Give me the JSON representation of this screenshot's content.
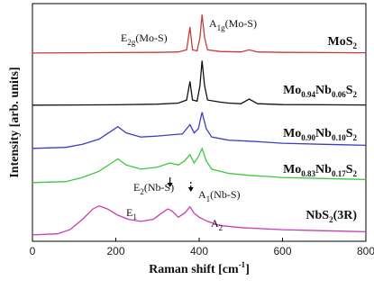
{
  "chart_data": {
    "type": "line",
    "xlabel": "Raman shift [cm",
    "xlabel_sup": "-1",
    "xlabel_close": "]",
    "ylabel": "Intensity [arb. units]",
    "xlim": [
      0,
      800
    ],
    "xticks": [
      0,
      200,
      400,
      600,
      800
    ],
    "grid": false,
    "series": [
      {
        "name": "MoS2",
        "label_main": "MoS",
        "label_sub": "2",
        "color": "#c83a3a",
        "points": [
          [
            0,
            0.5
          ],
          [
            100,
            0.6
          ],
          [
            200,
            0.7
          ],
          [
            300,
            0.8
          ],
          [
            350,
            1.0
          ],
          [
            370,
            2.0
          ],
          [
            378,
            13.0
          ],
          [
            384,
            2.0
          ],
          [
            395,
            1.5
          ],
          [
            402,
            8.0
          ],
          [
            407,
            19.0
          ],
          [
            413,
            8.0
          ],
          [
            420,
            2.0
          ],
          [
            450,
            1.2
          ],
          [
            500,
            1.0
          ],
          [
            520,
            2.0
          ],
          [
            540,
            1.0
          ],
          [
            600,
            0.8
          ],
          [
            700,
            0.7
          ],
          [
            800,
            0.6
          ]
        ]
      },
      {
        "name": "Mo0.94Nb0.06S2",
        "label_parts": [
          [
            "Mo",
            ""
          ],
          [
            "0.94",
            "sub"
          ],
          [
            "Nb",
            ""
          ],
          [
            "0.06",
            "sub"
          ],
          [
            "S",
            ""
          ],
          [
            "2",
            "sub"
          ]
        ],
        "color": "#111111",
        "points": [
          [
            0,
            0.5
          ],
          [
            100,
            0.6
          ],
          [
            200,
            0.7
          ],
          [
            300,
            1.0
          ],
          [
            350,
            1.5
          ],
          [
            370,
            3.0
          ],
          [
            378,
            12.0
          ],
          [
            384,
            3.0
          ],
          [
            395,
            2.5
          ],
          [
            402,
            10.0
          ],
          [
            407,
            22.0
          ],
          [
            413,
            10.0
          ],
          [
            420,
            3.0
          ],
          [
            450,
            2.0
          ],
          [
            470,
            1.5
          ],
          [
            500,
            1.2
          ],
          [
            520,
            3.5
          ],
          [
            540,
            1.2
          ],
          [
            600,
            0.8
          ],
          [
            700,
            0.7
          ],
          [
            800,
            0.6
          ]
        ]
      },
      {
        "name": "Mo0.90Nb0.10S2",
        "label_parts": [
          [
            "Mo",
            ""
          ],
          [
            "0.90",
            "sub"
          ],
          [
            "Nb",
            ""
          ],
          [
            "0.10",
            "sub"
          ],
          [
            "S",
            ""
          ],
          [
            "2",
            "sub"
          ]
        ],
        "color": "#3c3cc8",
        "points": [
          [
            0,
            0.5
          ],
          [
            80,
            1.0
          ],
          [
            120,
            2.5
          ],
          [
            160,
            5.0
          ],
          [
            190,
            9.0
          ],
          [
            205,
            11.0
          ],
          [
            225,
            8.0
          ],
          [
            260,
            6.0
          ],
          [
            300,
            6.5
          ],
          [
            330,
            7.0
          ],
          [
            360,
            7.5
          ],
          [
            378,
            12.0
          ],
          [
            388,
            8.0
          ],
          [
            398,
            10.0
          ],
          [
            407,
            18.0
          ],
          [
            417,
            10.0
          ],
          [
            430,
            6.0
          ],
          [
            470,
            4.5
          ],
          [
            520,
            4.0
          ],
          [
            560,
            3.5
          ],
          [
            600,
            3.0
          ],
          [
            700,
            2.5
          ],
          [
            800,
            2.0
          ]
        ]
      },
      {
        "name": "Mo0.83Nb0.17S2",
        "label_parts": [
          [
            "Mo",
            ""
          ],
          [
            "0.83",
            "sub"
          ],
          [
            "Nb",
            ""
          ],
          [
            "0.17",
            "sub"
          ],
          [
            "S",
            ""
          ],
          [
            "2",
            "sub"
          ]
        ],
        "color": "#3cc83c",
        "points": [
          [
            0,
            0.5
          ],
          [
            80,
            1.0
          ],
          [
            120,
            3.0
          ],
          [
            160,
            6.0
          ],
          [
            190,
            10.0
          ],
          [
            205,
            12.0
          ],
          [
            225,
            9.0
          ],
          [
            260,
            7.0
          ],
          [
            300,
            8.0
          ],
          [
            330,
            10.0
          ],
          [
            350,
            9.0
          ],
          [
            365,
            11.0
          ],
          [
            378,
            14.0
          ],
          [
            388,
            10.0
          ],
          [
            398,
            13.0
          ],
          [
            407,
            17.0
          ],
          [
            417,
            11.0
          ],
          [
            430,
            7.0
          ],
          [
            470,
            5.0
          ],
          [
            520,
            4.0
          ],
          [
            560,
            3.5
          ],
          [
            600,
            3.0
          ],
          [
            700,
            2.5
          ],
          [
            800,
            2.0
          ]
        ]
      },
      {
        "name": "NbS2(3R)",
        "label_parts": [
          [
            "NbS",
            ""
          ],
          [
            "2",
            "sub"
          ],
          [
            "(3R)",
            ""
          ]
        ],
        "color": "#c83cb4",
        "points": [
          [
            0,
            0.5
          ],
          [
            60,
            1.0
          ],
          [
            90,
            3.0
          ],
          [
            120,
            8.0
          ],
          [
            145,
            13.0
          ],
          [
            160,
            14.5
          ],
          [
            180,
            13.0
          ],
          [
            205,
            10.0
          ],
          [
            230,
            8.0
          ],
          [
            260,
            7.0
          ],
          [
            290,
            8.0
          ],
          [
            310,
            11.0
          ],
          [
            325,
            13.0
          ],
          [
            335,
            12.0
          ],
          [
            350,
            9.0
          ],
          [
            365,
            11.0
          ],
          [
            378,
            14.0
          ],
          [
            388,
            11.0
          ],
          [
            400,
            9.0
          ],
          [
            420,
            7.0
          ],
          [
            450,
            5.0
          ],
          [
            500,
            4.0
          ],
          [
            600,
            3.0
          ],
          [
            700,
            2.5
          ],
          [
            800,
            2.0
          ]
        ]
      }
    ],
    "annotations": [
      {
        "parts": [
          [
            "E",
            ""
          ],
          [
            "2g",
            "sub"
          ],
          [
            "(Mo-S)",
            ""
          ]
        ]
      },
      {
        "parts": [
          [
            "A",
            ""
          ],
          [
            "1g",
            "sub"
          ],
          [
            "(Mo-S)",
            ""
          ]
        ]
      },
      {
        "parts": [
          [
            "E",
            ""
          ],
          [
            "2",
            "sub"
          ],
          [
            "(Nb-S)",
            ""
          ]
        ]
      },
      {
        "parts": [
          [
            "A",
            ""
          ],
          [
            "1",
            "sub"
          ],
          [
            "(Nb-S)",
            ""
          ]
        ]
      },
      {
        "parts": [
          [
            "E",
            ""
          ],
          [
            "1",
            "sub"
          ]
        ]
      },
      {
        "parts": [
          [
            "A",
            ""
          ],
          [
            "2",
            "sub"
          ]
        ]
      }
    ]
  }
}
